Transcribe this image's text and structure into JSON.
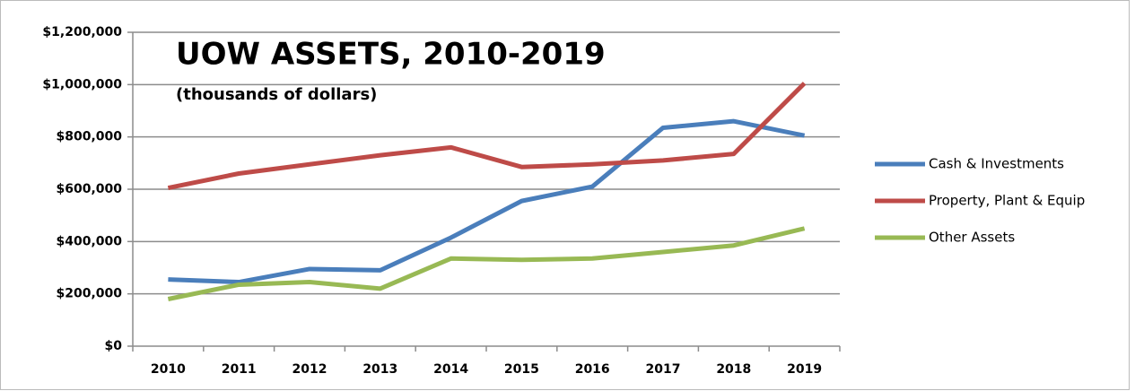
{
  "chart_data": {
    "type": "line",
    "title": "UOW ASSETS, 2010-2019",
    "subtitle": "(thousands of dollars)",
    "categories": [
      "2010",
      "2011",
      "2012",
      "2013",
      "2014",
      "2015",
      "2016",
      "2017",
      "2018",
      "2019"
    ],
    "series": [
      {
        "name": "Cash & Investments",
        "color": "#4a7ebb",
        "values": [
          255000,
          245000,
          295000,
          290000,
          415000,
          555000,
          610000,
          835000,
          860000,
          805000
        ]
      },
      {
        "name": "Property, Plant & Equip",
        "color": "#be4b48",
        "values": [
          605000,
          660000,
          695000,
          730000,
          760000,
          685000,
          695000,
          710000,
          735000,
          1005000
        ]
      },
      {
        "name": "Other Assets",
        "color": "#98b954",
        "values": [
          180000,
          235000,
          245000,
          220000,
          335000,
          330000,
          335000,
          360000,
          385000,
          450000
        ]
      }
    ],
    "ylim": [
      0,
      1200000
    ],
    "yticks": [
      {
        "value": 0,
        "label": "$0"
      },
      {
        "value": 200000,
        "label": "$200,000"
      },
      {
        "value": 400000,
        "label": "$400,000"
      },
      {
        "value": 600000,
        "label": "$600,000"
      },
      {
        "value": 800000,
        "label": "$800,000"
      },
      {
        "value": 1000000,
        "label": "$1,000,000"
      },
      {
        "value": 1200000,
        "label": "$1,200,000"
      }
    ],
    "grid": true,
    "legend": "right"
  }
}
